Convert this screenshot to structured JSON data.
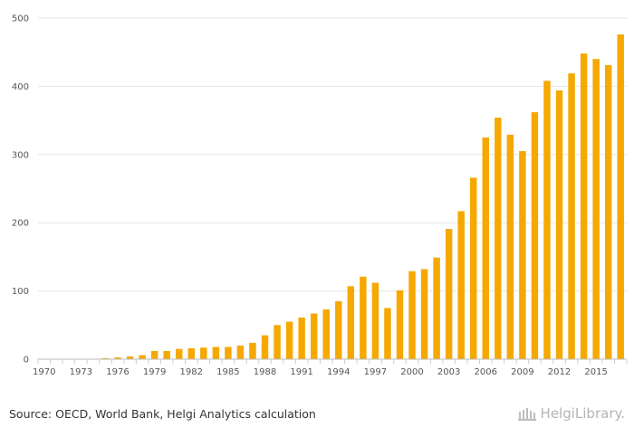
{
  "chart_data": {
    "type": "bar",
    "color": "#f5a800",
    "ylim": [
      0,
      500
    ],
    "yticks": [
      0,
      100,
      200,
      300,
      400,
      500
    ],
    "grid": true,
    "legend": "none",
    "categories": [
      "1970",
      "1971",
      "1972",
      "1973",
      "1974",
      "1975",
      "1976",
      "1977",
      "1978",
      "1979",
      "1980",
      "1981",
      "1982",
      "1983",
      "1984",
      "1985",
      "1986",
      "1987",
      "1988",
      "1989",
      "1990",
      "1991",
      "1992",
      "1993",
      "1994",
      "1995",
      "1996",
      "1997",
      "1998",
      "1999",
      "2000",
      "2001",
      "2002",
      "2003",
      "2004",
      "2005",
      "2006",
      "2007",
      "2008",
      "2009",
      "2010",
      "2011",
      "2012",
      "2013",
      "2014",
      "2015",
      "2016",
      "2017"
    ],
    "tick_labels": [
      "1970",
      "1973",
      "1976",
      "1979",
      "1982",
      "1985",
      "1988",
      "1991",
      "1994",
      "1997",
      "2000",
      "2003",
      "2006",
      "2009",
      "2012",
      "2015"
    ],
    "values": [
      0,
      0,
      0,
      0,
      0,
      1.5,
      2.5,
      4,
      6,
      12,
      12,
      15,
      16,
      17,
      18,
      18,
      20,
      24,
      35,
      50,
      55,
      61,
      67,
      73,
      85,
      107,
      121,
      112,
      75,
      101,
      129,
      132,
      149,
      191,
      217,
      266,
      325,
      354,
      329,
      305,
      362,
      408,
      394,
      419,
      448,
      440,
      431,
      476
    ]
  },
  "footer": {
    "source": "Source: OECD, World Bank, Helgi Analytics calculation",
    "brand": "HelgiLibrary."
  }
}
